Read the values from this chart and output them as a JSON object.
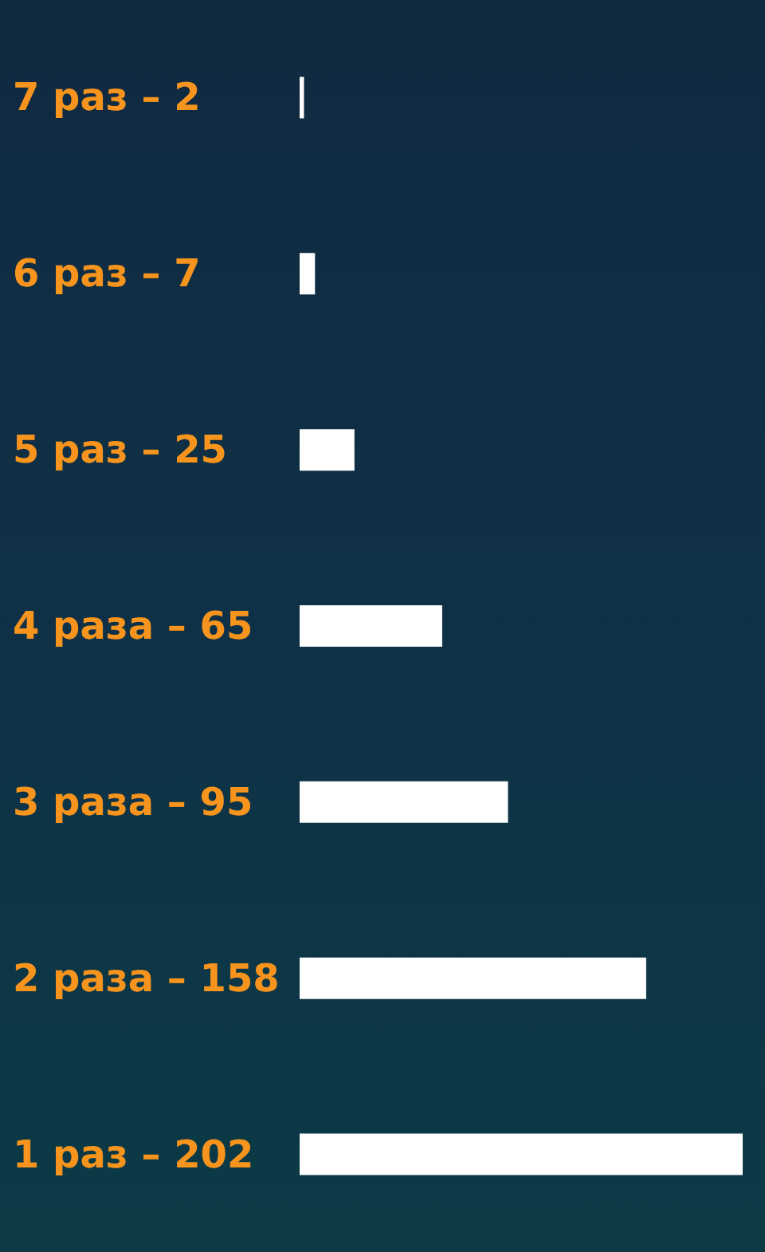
{
  "chart_data": {
    "type": "bar",
    "orientation": "horizontal",
    "categories": [
      "7 раз –",
      "6 раз –",
      "5 раз –",
      "4 раза –",
      "3 раза –",
      "2 раза –",
      "1 раз –"
    ],
    "values": [
      2,
      7,
      25,
      65,
      95,
      158,
      202
    ],
    "data_labels": true,
    "color": "#ffffff",
    "grid": false,
    "tick_labels": "y"
  }
}
